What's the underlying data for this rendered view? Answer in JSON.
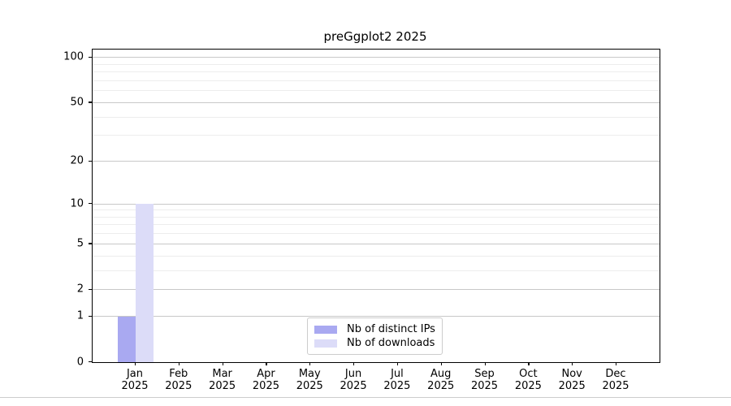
{
  "page": {
    "background": "#ffffff",
    "divider_color": "#cdcdcd"
  },
  "chart_data": {
    "type": "bar",
    "title": "preGgplot2 2025",
    "yscale": "log1p",
    "ylim": [
      0,
      113
    ],
    "y_major_ticks": [
      0,
      1,
      2,
      5,
      10,
      20,
      50,
      100
    ],
    "y_minor_gridlines": [
      3,
      4,
      6,
      7,
      8,
      9,
      30,
      40,
      60,
      70,
      80,
      90
    ],
    "grid": "on",
    "x_ticks": [
      {
        "line1": "Jan",
        "line2": "2025"
      },
      {
        "line1": "Feb",
        "line2": "2025"
      },
      {
        "line1": "Mar",
        "line2": "2025"
      },
      {
        "line1": "Apr",
        "line2": "2025"
      },
      {
        "line1": "May",
        "line2": "2025"
      },
      {
        "line1": "Jun",
        "line2": "2025"
      },
      {
        "line1": "Jul",
        "line2": "2025"
      },
      {
        "line1": "Aug",
        "line2": "2025"
      },
      {
        "line1": "Sep",
        "line2": "2025"
      },
      {
        "line1": "Oct",
        "line2": "2025"
      },
      {
        "line1": "Nov",
        "line2": "2025"
      },
      {
        "line1": "Dec",
        "line2": "2025"
      }
    ],
    "series": [
      {
        "key": "distinct-ips",
        "name": "Nb of distinct IPs",
        "color": "#a9a9f1",
        "values": [
          1,
          0,
          0,
          0,
          0,
          0,
          0,
          0,
          0,
          0,
          0,
          0
        ]
      },
      {
        "key": "downloads",
        "name": "Nb of downloads",
        "color": "#dcdcf8",
        "values": [
          10,
          0,
          0,
          0,
          0,
          0,
          0,
          0,
          0,
          0,
          0,
          0
        ]
      }
    ],
    "legend_position": "lower center"
  },
  "style": {
    "major_grid_color": "#c8c8c8",
    "minor_grid_color": "#ededed",
    "spine_color": "#000000",
    "tick_color": "#000000",
    "text_color": "#000000"
  }
}
